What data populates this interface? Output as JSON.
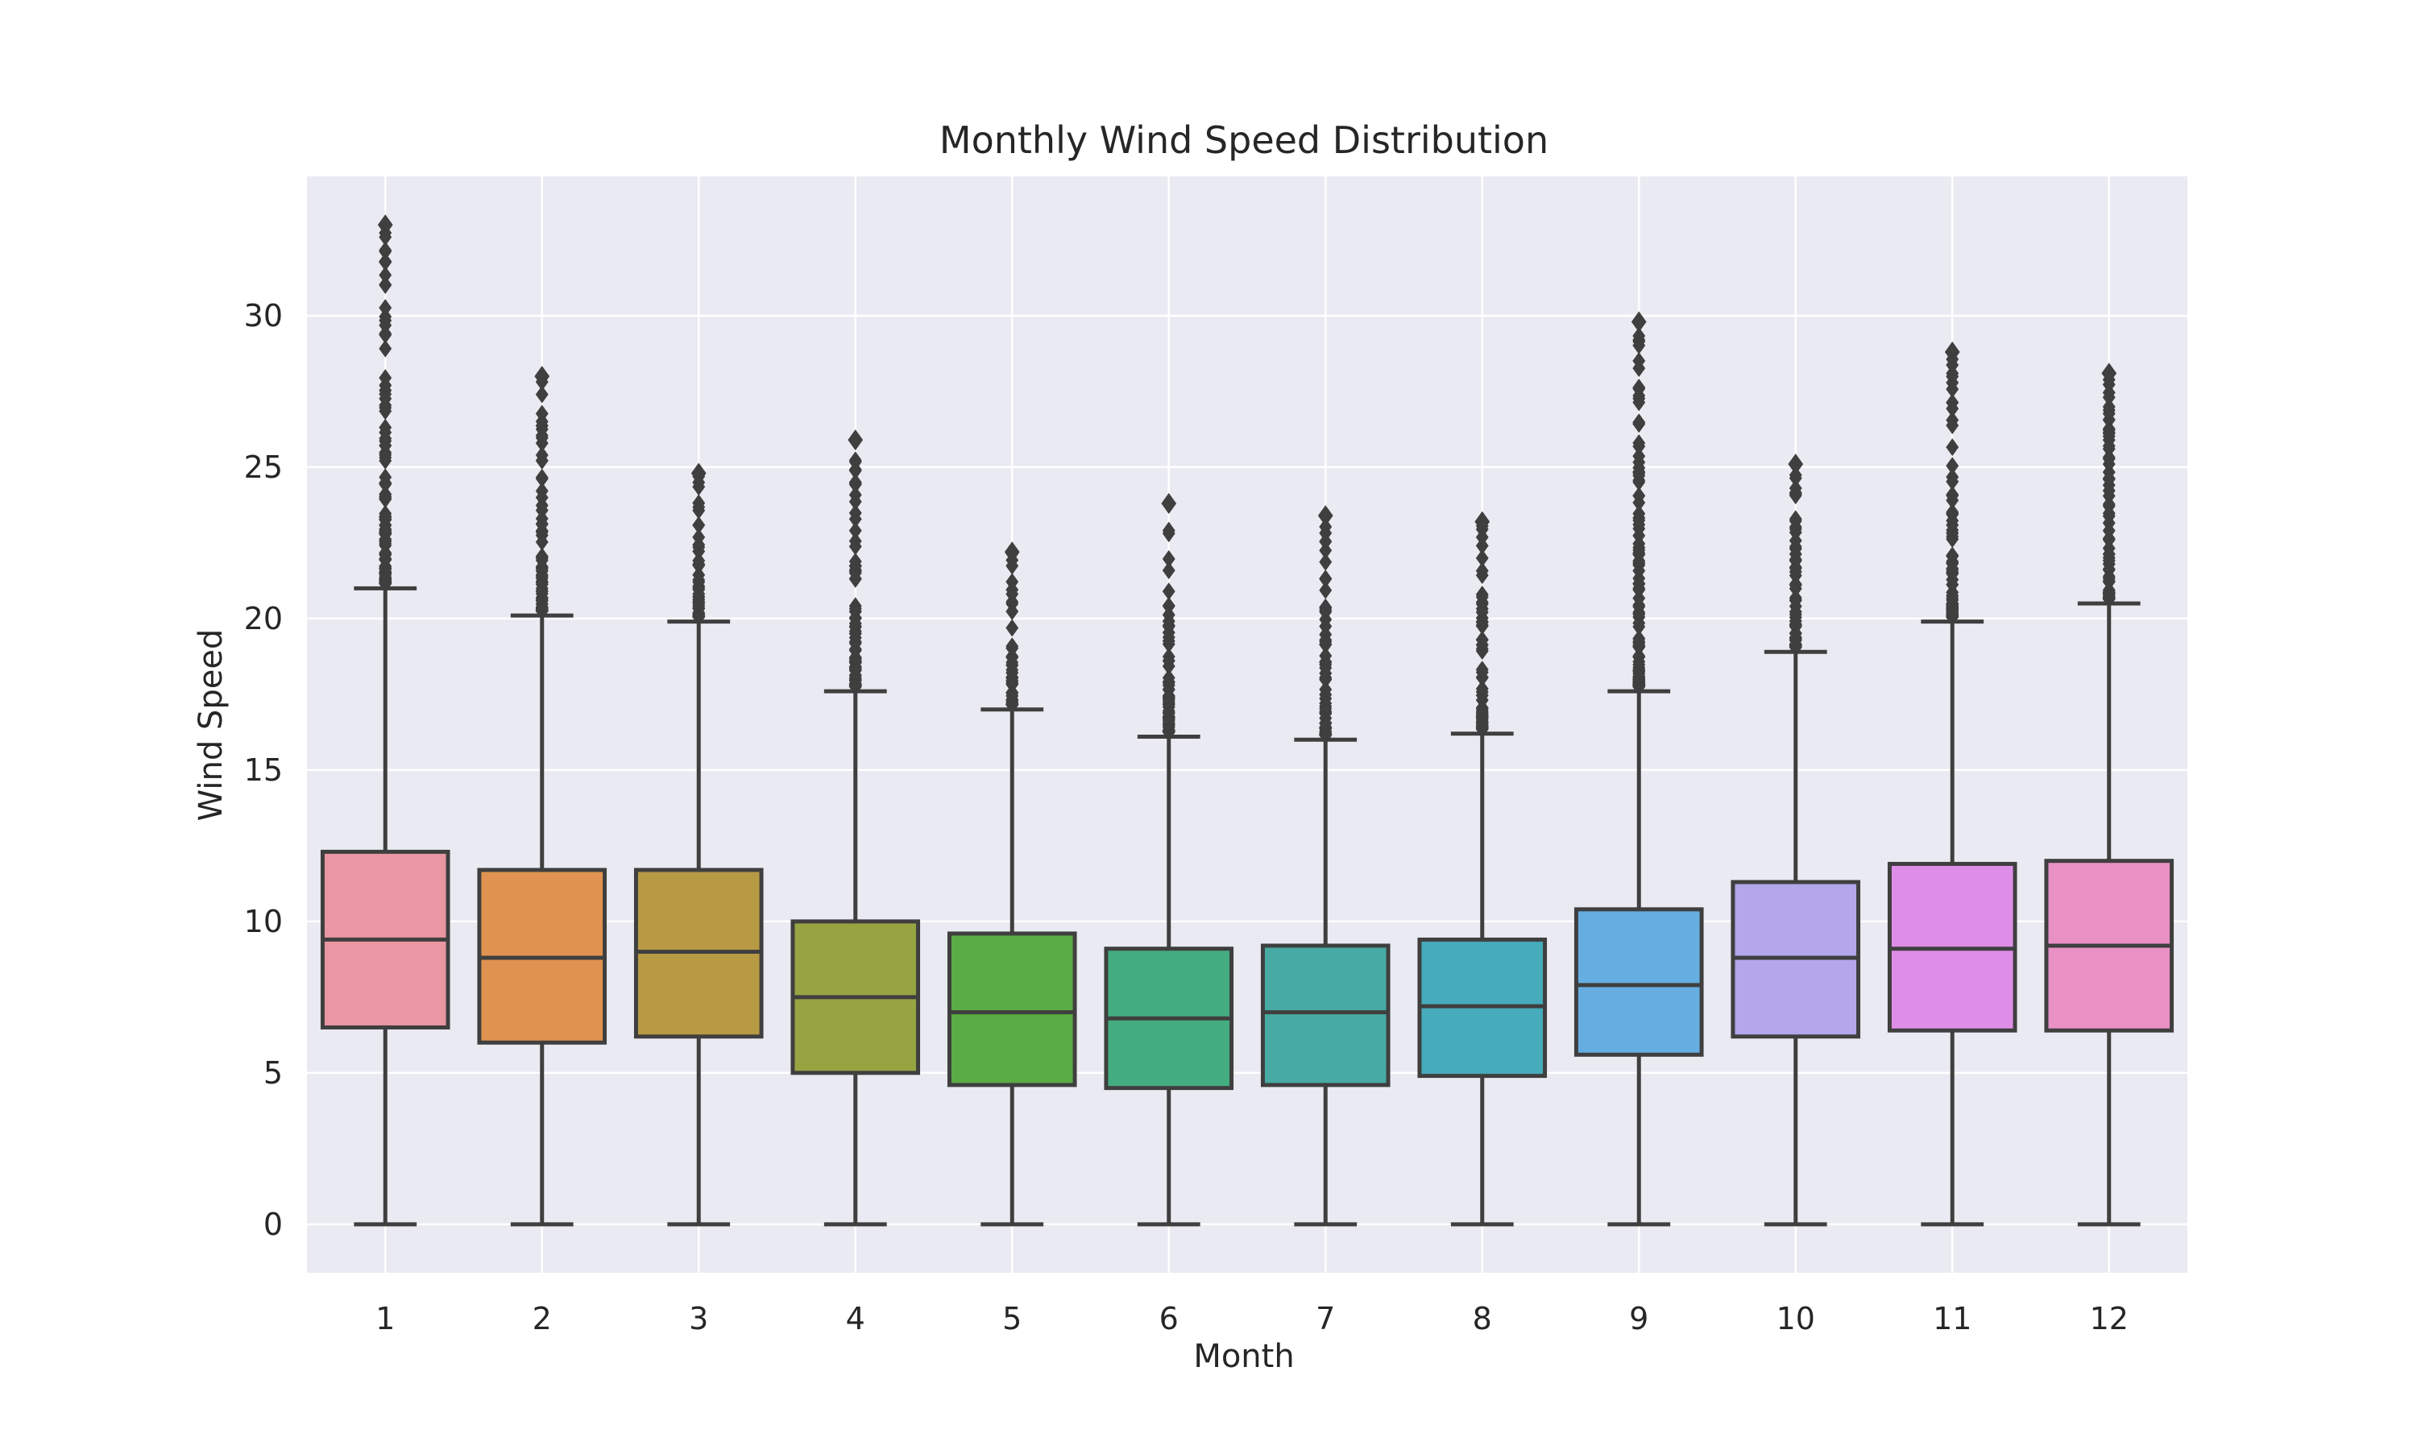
{
  "chart_data": {
    "type": "box",
    "title": "Monthly Wind Speed Distribution",
    "xlabel": "Month",
    "ylabel": "Wind Speed",
    "ylim": [
      -1.6,
      34.6
    ],
    "yticks": [
      0,
      5,
      10,
      15,
      20,
      25,
      30
    ],
    "grid": true,
    "categories": [
      "1",
      "2",
      "3",
      "4",
      "5",
      "6",
      "7",
      "8",
      "9",
      "10",
      "11",
      "12"
    ],
    "boxes": [
      {
        "category": "1",
        "color": "#ea96a3",
        "whisker_low": 0,
        "q1": 6.5,
        "median": 9.4,
        "q3": 12.3,
        "whisker_high": 21.0,
        "outlier_max": 33.0
      },
      {
        "category": "2",
        "color": "#e09350",
        "whisker_low": 0,
        "q1": 6.0,
        "median": 8.8,
        "q3": 11.7,
        "whisker_high": 20.1,
        "outlier_max": 28.0
      },
      {
        "category": "3",
        "color": "#b89a44",
        "whisker_low": 0,
        "q1": 6.2,
        "median": 9.0,
        "q3": 11.7,
        "whisker_high": 19.9,
        "outlier_max": 24.8
      },
      {
        "category": "4",
        "color": "#97a442",
        "whisker_low": 0,
        "q1": 5.0,
        "median": 7.5,
        "q3": 10.0,
        "whisker_high": 17.6,
        "outlier_max": 25.9
      },
      {
        "category": "5",
        "color": "#59ad44",
        "whisker_low": 0,
        "q1": 4.6,
        "median": 7.0,
        "q3": 9.6,
        "whisker_high": 17.0,
        "outlier_max": 22.2
      },
      {
        "category": "6",
        "color": "#44ad80",
        "whisker_low": 0,
        "q1": 4.5,
        "median": 6.8,
        "q3": 9.1,
        "whisker_high": 16.1,
        "outlier_max": 23.8
      },
      {
        "category": "7",
        "color": "#47aba3",
        "whisker_low": 0,
        "q1": 4.6,
        "median": 7.0,
        "q3": 9.2,
        "whisker_high": 16.0,
        "outlier_max": 23.4
      },
      {
        "category": "8",
        "color": "#46abbb",
        "whisker_low": 0,
        "q1": 4.9,
        "median": 7.2,
        "q3": 9.4,
        "whisker_high": 16.2,
        "outlier_max": 23.2
      },
      {
        "category": "9",
        "color": "#66ade1",
        "whisker_low": 0,
        "q1": 5.6,
        "median": 7.9,
        "q3": 10.4,
        "whisker_high": 17.6,
        "outlier_max": 29.8
      },
      {
        "category": "10",
        "color": "#b4a6ea",
        "whisker_low": 0,
        "q1": 6.2,
        "median": 8.8,
        "q3": 11.3,
        "whisker_high": 18.9,
        "outlier_max": 25.1
      },
      {
        "category": "11",
        "color": "#df8ee8",
        "whisker_low": 0,
        "q1": 6.4,
        "median": 9.1,
        "q3": 11.9,
        "whisker_high": 19.9,
        "outlier_max": 28.8
      },
      {
        "category": "12",
        "color": "#e990c5",
        "whisker_low": 0,
        "q1": 6.4,
        "median": 9.2,
        "q3": 12.0,
        "whisker_high": 20.5,
        "outlier_max": 28.1
      }
    ],
    "colors": {
      "plot_background": "#eaeaf2",
      "grid": "#ffffff",
      "line": "#3f3f3f"
    }
  }
}
